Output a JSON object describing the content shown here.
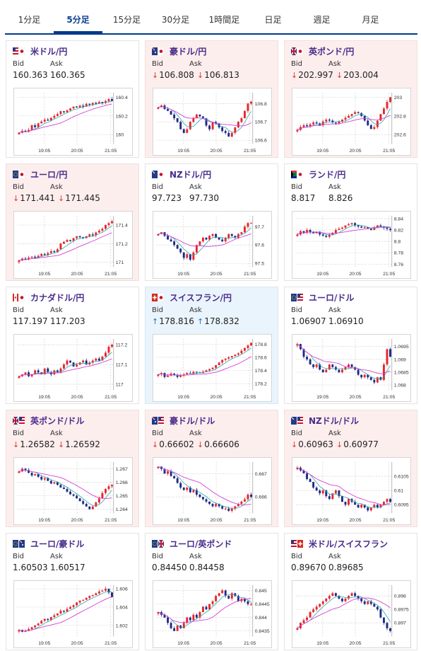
{
  "tabs": [
    {
      "label": "1分足",
      "active": false
    },
    {
      "label": "5分足",
      "active": true
    },
    {
      "label": "15分足",
      "active": false
    },
    {
      "label": "30分足",
      "active": false
    },
    {
      "label": "1時間足",
      "active": false
    },
    {
      "label": "日足",
      "active": false
    },
    {
      "label": "週足",
      "active": false
    },
    {
      "label": "月足",
      "active": false
    }
  ],
  "cards": [
    {
      "pair": "米ドル/円",
      "flag": "us-jp",
      "trend": "none",
      "bid_label": "Bid",
      "ask_label": "Ask",
      "bid": "160.363",
      "ask": "160.365",
      "yticks": [
        "160.4",
        "160.2",
        "160"
      ],
      "ytick_vals": [
        160.4,
        160.2,
        160.0
      ],
      "ylim": [
        159.9,
        160.45
      ],
      "xticks": [
        "19:05",
        "20:05",
        "21:05"
      ],
      "close": [
        160.02,
        160.04,
        160.03,
        160.05,
        160.1,
        160.08,
        160.12,
        160.14,
        160.16,
        160.15,
        160.18,
        160.2,
        160.22,
        160.25,
        160.24,
        160.26,
        160.28,
        160.3,
        160.29,
        160.31,
        160.3,
        160.33,
        160.32,
        160.34,
        160.33,
        160.35,
        160.34,
        160.36,
        160.38,
        160.36
      ]
    },
    {
      "pair": "豪ドル/円",
      "flag": "au-jp",
      "trend": "down",
      "bid_label": "Bid",
      "ask_label": "Ask",
      "bid": "106.808",
      "ask": "106.813",
      "yticks": [
        "106.8",
        "106.7",
        "106.6"
      ],
      "ytick_vals": [
        106.8,
        106.7,
        106.6
      ],
      "ylim": [
        106.58,
        106.86
      ],
      "xticks": [
        "19:05",
        "20:05",
        "21:05"
      ],
      "close": [
        106.78,
        106.79,
        106.77,
        106.76,
        106.74,
        106.72,
        106.7,
        106.66,
        106.64,
        106.66,
        106.7,
        106.72,
        106.74,
        106.73,
        106.72,
        106.68,
        106.66,
        106.7,
        106.69,
        106.67,
        106.65,
        106.64,
        106.62,
        106.64,
        106.67,
        106.7,
        106.72,
        106.76,
        106.8,
        106.81
      ]
    },
    {
      "pair": "英ポンド/円",
      "flag": "gb-jp",
      "trend": "down",
      "bid_label": "Bid",
      "ask_label": "Ask",
      "bid": "202.997",
      "ask": "203.004",
      "yticks": [
        "203",
        "202.8",
        "202.6"
      ],
      "ytick_vals": [
        203.0,
        202.8,
        202.6
      ],
      "ylim": [
        202.5,
        203.05
      ],
      "xticks": [
        "19:05",
        "20:05",
        "21:05"
      ],
      "close": [
        202.65,
        202.68,
        202.7,
        202.69,
        202.71,
        202.73,
        202.72,
        202.7,
        202.74,
        202.76,
        202.75,
        202.73,
        202.72,
        202.74,
        202.76,
        202.78,
        202.8,
        202.82,
        202.84,
        202.83,
        202.8,
        202.75,
        202.7,
        202.66,
        202.68,
        202.75,
        202.82,
        202.88,
        202.95,
        203.0
      ]
    },
    {
      "pair": "ユーロ/円",
      "flag": "eu-jp",
      "trend": "down",
      "bid_label": "Bid",
      "ask_label": "Ask",
      "bid": "171.441",
      "ask": "171.445",
      "yticks": [
        "171.4",
        "171.2",
        "171"
      ],
      "ytick_vals": [
        171.4,
        171.2,
        171.0
      ],
      "ylim": [
        170.95,
        171.5
      ],
      "xticks": [
        "19:05",
        "20:05",
        "21:05"
      ],
      "close": [
        171.02,
        171.04,
        171.03,
        171.05,
        171.06,
        171.05,
        171.07,
        171.09,
        171.08,
        171.1,
        171.12,
        171.11,
        171.14,
        171.2,
        171.22,
        171.24,
        171.23,
        171.26,
        171.28,
        171.27,
        171.26,
        171.28,
        171.3,
        171.29,
        171.32,
        171.34,
        171.36,
        171.4,
        171.42,
        171.44
      ]
    },
    {
      "pair": "NZドル/円",
      "flag": "nz-jp",
      "trend": "none",
      "bid_label": "Bid",
      "ask_label": "Ask",
      "bid": "97.723",
      "ask": "97.730",
      "yticks": [
        "97.7",
        "97.6",
        "97.5"
      ],
      "ytick_vals": [
        97.7,
        97.6,
        97.5
      ],
      "ylim": [
        97.48,
        97.76
      ],
      "xticks": [
        "19:05",
        "20:05",
        "21:05"
      ],
      "close": [
        97.66,
        97.67,
        97.65,
        97.63,
        97.62,
        97.6,
        97.58,
        97.56,
        97.53,
        97.55,
        97.52,
        97.56,
        97.6,
        97.62,
        97.64,
        97.63,
        97.65,
        97.66,
        97.64,
        97.63,
        97.62,
        97.64,
        97.66,
        97.65,
        97.64,
        97.66,
        97.67,
        97.7,
        97.72,
        97.72
      ]
    },
    {
      "pair": "ランド/円",
      "flag": "za-jp",
      "trend": "none",
      "bid_label": "Bid",
      "ask_label": "Ask",
      "bid": "8.817",
      "ask": "8.826",
      "yticks": [
        "8.84",
        "8.82",
        "8.8",
        "8.78",
        "8.76"
      ],
      "ytick_vals": [
        8.84,
        8.82,
        8.8,
        8.78,
        8.76
      ],
      "ylim": [
        8.755,
        8.845
      ],
      "xticks": [
        "19:05",
        "20:05",
        "21:05"
      ],
      "close": [
        8.812,
        8.818,
        8.815,
        8.82,
        8.816,
        8.814,
        8.817,
        8.812,
        8.81,
        8.808,
        8.812,
        8.815,
        8.82,
        8.822,
        8.824,
        8.828,
        8.83,
        8.832,
        8.828,
        8.826,
        8.824,
        8.825,
        8.822,
        8.82,
        8.824,
        8.828,
        8.826,
        8.824,
        8.822,
        8.82
      ]
    },
    {
      "pair": "カナダドル/円",
      "flag": "ca-jp",
      "trend": "none",
      "bid_label": "Bid",
      "ask_label": "Ask",
      "bid": "117.197",
      "ask": "117.203",
      "yticks": [
        "117.2",
        "117.1",
        "117"
      ],
      "ytick_vals": [
        117.2,
        117.1,
        117.0
      ],
      "ylim": [
        116.97,
        117.23
      ],
      "xticks": [
        "19:05",
        "20:05",
        "21:05"
      ],
      "close": [
        117.04,
        117.05,
        117.06,
        117.04,
        117.05,
        117.07,
        117.06,
        117.05,
        117.08,
        117.06,
        117.05,
        117.07,
        117.06,
        117.08,
        117.1,
        117.12,
        117.11,
        117.09,
        117.1,
        117.11,
        117.12,
        117.1,
        117.11,
        117.12,
        117.13,
        117.12,
        117.14,
        117.16,
        117.19,
        117.2
      ]
    },
    {
      "pair": "スイスフラン/円",
      "flag": "ch-jp",
      "trend": "up",
      "bid_label": "Bid",
      "ask_label": "Ask",
      "bid": "178.816",
      "ask": "178.832",
      "yticks": [
        "178.8",
        "178.6",
        "178.4",
        "178.2"
      ],
      "ytick_vals": [
        178.8,
        178.6,
        178.4,
        178.2
      ],
      "ylim": [
        178.1,
        178.88
      ],
      "xticks": [
        "19:05",
        "20:05",
        "21:05"
      ],
      "close": [
        178.34,
        178.36,
        178.3,
        178.32,
        178.35,
        178.33,
        178.3,
        178.32,
        178.34,
        178.36,
        178.35,
        178.38,
        178.37,
        178.36,
        178.38,
        178.4,
        178.42,
        178.44,
        178.48,
        178.52,
        178.56,
        178.58,
        178.6,
        178.62,
        178.64,
        178.66,
        178.7,
        178.74,
        178.78,
        178.82
      ]
    },
    {
      "pair": "ユーロ/ドル",
      "flag": "eu-us",
      "trend": "none",
      "bid_label": "Bid",
      "ask_label": "Ask",
      "bid": "1.06907",
      "ask": "1.06910",
      "yticks": [
        "1.0695",
        "1.069",
        "1.0685",
        "1.068"
      ],
      "ytick_vals": [
        1.0695,
        1.069,
        1.0685,
        1.068
      ],
      "ylim": [
        1.0678,
        1.0698
      ],
      "xticks": [
        "19:05",
        "20:05",
        "21:05"
      ],
      "close": [
        1.0696,
        1.0694,
        1.0691,
        1.069,
        1.0688,
        1.0687,
        1.0688,
        1.0686,
        1.0685,
        1.0686,
        1.0688,
        1.0687,
        1.0686,
        1.0685,
        1.0686,
        1.0687,
        1.0688,
        1.0687,
        1.0686,
        1.0684,
        1.0683,
        1.0684,
        1.0683,
        1.0682,
        1.0681,
        1.0683,
        1.0682,
        1.0688,
        1.0694,
        1.0691
      ]
    },
    {
      "pair": "英ポンド/ドル",
      "flag": "gb-us",
      "trend": "down",
      "bid_label": "Bid",
      "ask_label": "Ask",
      "bid": "1.26582",
      "ask": "1.26592",
      "yticks": [
        "1.267",
        "1.266",
        "1.265",
        "1.264"
      ],
      "ytick_vals": [
        1.267,
        1.266,
        1.265,
        1.264
      ],
      "ylim": [
        1.2637,
        1.2675
      ],
      "xticks": [
        "19:05",
        "20:05",
        "21:05"
      ],
      "close": [
        1.2668,
        1.267,
        1.2669,
        1.2667,
        1.2665,
        1.2666,
        1.2664,
        1.2662,
        1.2663,
        1.2661,
        1.2659,
        1.266,
        1.2658,
        1.2656,
        1.2655,
        1.2653,
        1.2651,
        1.265,
        1.2648,
        1.2646,
        1.2644,
        1.2642,
        1.264,
        1.2642,
        1.2645,
        1.2648,
        1.2652,
        1.2655,
        1.2657,
        1.2658
      ]
    },
    {
      "pair": "豪ドル/ドル",
      "flag": "au-us",
      "trend": "down",
      "bid_label": "Bid",
      "ask_label": "Ask",
      "bid": "0.66602",
      "ask": "0.66606",
      "yticks": [
        "0.667",
        "0.666"
      ],
      "ytick_vals": [
        0.667,
        0.666
      ],
      "ylim": [
        0.6653,
        0.6675
      ],
      "xticks": [
        "19:05",
        "20:05",
        "21:05"
      ],
      "close": [
        0.6673,
        0.6672,
        0.667,
        0.6671,
        0.6669,
        0.6668,
        0.6666,
        0.6664,
        0.6663,
        0.6664,
        0.6662,
        0.6663,
        0.6661,
        0.666,
        0.6659,
        0.6658,
        0.6657,
        0.6656,
        0.6657,
        0.6656,
        0.6655,
        0.6655,
        0.6654,
        0.6655,
        0.6656,
        0.6657,
        0.6658,
        0.6659,
        0.6661,
        0.666
      ]
    },
    {
      "pair": "NZドル/ドル",
      "flag": "nz-us",
      "trend": "down",
      "bid_label": "Bid",
      "ask_label": "Ask",
      "bid": "0.60963",
      "ask": "0.60977",
      "yticks": [
        "0.6105",
        "0.61",
        "0.6095"
      ],
      "ytick_vals": [
        0.6105,
        0.61,
        0.6095
      ],
      "ylim": [
        0.6092,
        0.611
      ],
      "xticks": [
        "19:05",
        "20:05",
        "21:05"
      ],
      "close": [
        0.6108,
        0.6107,
        0.6106,
        0.6104,
        0.6103,
        0.6101,
        0.61,
        0.6099,
        0.61,
        0.6098,
        0.6097,
        0.6099,
        0.61,
        0.6098,
        0.6096,
        0.6095,
        0.6097,
        0.6096,
        0.6095,
        0.6094,
        0.6095,
        0.6094,
        0.6093,
        0.6094,
        0.6095,
        0.6094,
        0.6095,
        0.6096,
        0.6097,
        0.6096
      ]
    },
    {
      "pair": "ユーロ/豪ドル",
      "flag": "eu-au",
      "trend": "none",
      "bid_label": "Bid",
      "ask_label": "Ask",
      "bid": "1.60503",
      "ask": "1.60517",
      "yticks": [
        "1.606",
        "1.604",
        "1.602"
      ],
      "ytick_vals": [
        1.606,
        1.604,
        1.602
      ],
      "ylim": [
        1.6008,
        1.6064
      ],
      "xticks": [
        "19:05",
        "20:05",
        "21:05"
      ],
      "close": [
        1.6015,
        1.6013,
        1.6014,
        1.6016,
        1.6018,
        1.602,
        1.6022,
        1.6025,
        1.6027,
        1.6026,
        1.6029,
        1.6031,
        1.6033,
        1.6036,
        1.6035,
        1.6038,
        1.604,
        1.6042,
        1.6045,
        1.6047,
        1.6048,
        1.605,
        1.6052,
        1.6053,
        1.6055,
        1.6057,
        1.6058,
        1.606,
        1.6056,
        1.6051
      ]
    },
    {
      "pair": "ユーロ/英ポンド",
      "flag": "eu-gb",
      "trend": "none",
      "bid_label": "Bid",
      "ask_label": "Ask",
      "bid": "0.84450",
      "ask": "0.84458",
      "yticks": [
        "0.845",
        "0.8445",
        "0.844",
        "0.8435"
      ],
      "ytick_vals": [
        0.845,
        0.8445,
        0.844,
        0.8435
      ],
      "ylim": [
        0.8433,
        0.8452
      ],
      "xticks": [
        "19:05",
        "20:05",
        "21:05"
      ],
      "close": [
        0.8442,
        0.8441,
        0.844,
        0.8438,
        0.8436,
        0.8435,
        0.8437,
        0.8436,
        0.8438,
        0.844,
        0.8439,
        0.8441,
        0.844,
        0.8442,
        0.8444,
        0.8443,
        0.8445,
        0.8446,
        0.8448,
        0.8449,
        0.845,
        0.8448,
        0.8447,
        0.8449,
        0.8448,
        0.8446,
        0.8447,
        0.8446,
        0.8445,
        0.8445
      ]
    },
    {
      "pair": "米ドル/スイスフラン",
      "flag": "us-ch",
      "trend": "none",
      "bid_label": "Bid",
      "ask_label": "Ask",
      "bid": "0.89670",
      "ask": "0.89685",
      "yticks": [
        "0.898",
        "0.8975",
        "0.897"
      ],
      "ytick_vals": [
        0.898,
        0.8975,
        0.897
      ],
      "ylim": [
        0.8965,
        0.8984
      ],
      "xticks": [
        "19:05",
        "20:05",
        "21:05"
      ],
      "close": [
        0.8968,
        0.897,
        0.8971,
        0.8972,
        0.8974,
        0.8975,
        0.8976,
        0.8977,
        0.8978,
        0.8979,
        0.898,
        0.8981,
        0.898,
        0.8979,
        0.8978,
        0.8979,
        0.898,
        0.8981,
        0.898,
        0.8979,
        0.8978,
        0.8977,
        0.8978,
        0.8977,
        0.8976,
        0.8975,
        0.8972,
        0.897,
        0.8968,
        0.8967
      ]
    }
  ],
  "colors": {
    "up_candle": "#e8252b",
    "down_candle": "#1f2a86",
    "ma_short": "#2aa5a5",
    "ma_long": "#d23ed6",
    "down_arrow": "#e0352b",
    "up_arrow": "#1a73c9",
    "tab_active": "#003a8c",
    "pair_text": "#4a2c8a"
  }
}
